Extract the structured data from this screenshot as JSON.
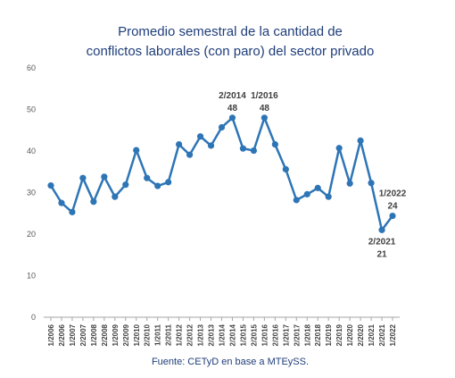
{
  "chart_data": {
    "type": "line",
    "title": "Promedio semestral de la cantidad de conflictos laborales (con paro) del sector privado",
    "title_lines": [
      "Promedio semestral de la cantidad de",
      "conflictos laborales (con paro) del sector privado"
    ],
    "source": "Fuente: CETyD en base a MTEySS.",
    "ylim": [
      0,
      60
    ],
    "yticks": [
      "0",
      "10",
      "20",
      "30",
      "40",
      "50",
      "60"
    ],
    "grid": false,
    "series_color": "#2e75b6",
    "axis_color": "#a6a6a6",
    "categories": [
      "1/2006",
      "2/2006",
      "1/2007",
      "2/2007",
      "1/2008",
      "2/2008",
      "1/2009",
      "2/2009",
      "1/2010",
      "2/2010",
      "1/2011",
      "2/2011",
      "1/2012",
      "2/2012",
      "1/2013",
      "2/2013",
      "1/2014",
      "2/2014",
      "1/2015",
      "2/2015",
      "1/2016",
      "2/2016",
      "1/2017",
      "2/2017",
      "1/2018",
      "2/2018",
      "1/2019",
      "2/2019",
      "1/2020",
      "2/2020",
      "1/2021",
      "2/2021",
      "1/2022"
    ],
    "series": [
      {
        "values": [
          31.7,
          27.5,
          25.3,
          33.5,
          27.8,
          33.8,
          29.0,
          31.9,
          40.2,
          33.5,
          31.6,
          32.5,
          41.6,
          39.1,
          43.5,
          41.3,
          45.7,
          48,
          40.6,
          40.1,
          48,
          41.6,
          35.6,
          28.2,
          29.6,
          31.1,
          29.0,
          40.7,
          32.2,
          42.5,
          32.3,
          21,
          24.4
        ]
      }
    ],
    "annotations": [
      {
        "category": "2/2014",
        "label": "2/2014",
        "value_label": "48",
        "position": "above"
      },
      {
        "category": "1/2016",
        "label": "1/2016",
        "value_label": "48",
        "position": "above"
      },
      {
        "category": "2/2021",
        "label": "2/2021",
        "value_label": "21",
        "position": "below"
      },
      {
        "category": "1/2022",
        "label": "1/2022",
        "value_label": "24",
        "position": "above"
      }
    ]
  }
}
